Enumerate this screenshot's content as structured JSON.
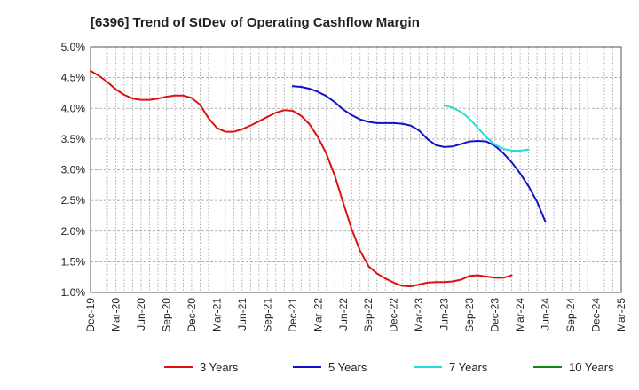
{
  "chart_data": {
    "type": "line",
    "title": "[6396]  Trend of StDev of Operating Cashflow Margin",
    "xlabel": "",
    "ylabel": "",
    "ylim": [
      1.0,
      5.0
    ],
    "yticks": [
      "5.0%",
      "4.5%",
      "4.0%",
      "3.5%",
      "3.0%",
      "2.5%",
      "2.0%",
      "1.5%",
      "1.0%"
    ],
    "ytick_values": [
      5.0,
      4.5,
      4.0,
      3.5,
      3.0,
      2.5,
      2.0,
      1.5,
      1.0
    ],
    "x_ticks": [
      "Dec-19",
      "Mar-20",
      "Jun-20",
      "Sep-20",
      "Dec-20",
      "Mar-21",
      "Jun-21",
      "Sep-21",
      "Dec-21",
      "Mar-22",
      "Jun-22",
      "Sep-22",
      "Dec-22",
      "Mar-23",
      "Jun-23",
      "Sep-23",
      "Dec-23",
      "Mar-24",
      "Jun-24",
      "Sep-24",
      "Dec-24",
      "Mar-25"
    ],
    "x_quarters": 21,
    "grid": true,
    "legend_position": "bottom",
    "series": [
      {
        "name": "3 Years",
        "color": "#dd1111",
        "start_quarter": 0,
        "values": [
          4.61,
          4.53,
          4.43,
          4.31,
          4.22,
          4.16,
          4.14,
          4.14,
          4.16,
          4.19,
          4.21,
          4.21,
          4.17,
          4.06,
          3.84,
          3.68,
          3.62,
          3.62,
          3.66,
          3.72,
          3.79,
          3.86,
          3.93,
          3.97,
          3.96,
          3.88,
          3.74,
          3.53,
          3.26,
          2.9,
          2.46,
          2.03,
          1.68,
          1.43,
          1.31,
          1.23,
          1.16,
          1.11,
          1.1,
          1.13,
          1.16,
          1.17,
          1.17,
          1.18,
          1.21,
          1.27,
          1.28,
          1.26,
          1.24,
          1.24,
          1.28
        ]
      },
      {
        "name": "5 Years",
        "color": "#1111cc",
        "start_quarter": 8,
        "values": [
          4.36,
          4.35,
          4.32,
          4.27,
          4.2,
          4.1,
          3.98,
          3.89,
          3.82,
          3.78,
          3.76,
          3.76,
          3.76,
          3.75,
          3.72,
          3.64,
          3.5,
          3.4,
          3.37,
          3.38,
          3.42,
          3.46,
          3.47,
          3.46,
          3.39,
          3.27,
          3.12,
          2.94,
          2.73,
          2.48,
          2.15
        ]
      },
      {
        "name": "7 Years",
        "color": "#22dddd",
        "start_quarter": 14,
        "values": [
          4.05,
          4.01,
          3.94,
          3.83,
          3.68,
          3.53,
          3.41,
          3.34,
          3.31,
          3.31,
          3.33
        ]
      },
      {
        "name": "10 Years",
        "color": "#118811",
        "start_quarter": null,
        "values": []
      }
    ]
  }
}
